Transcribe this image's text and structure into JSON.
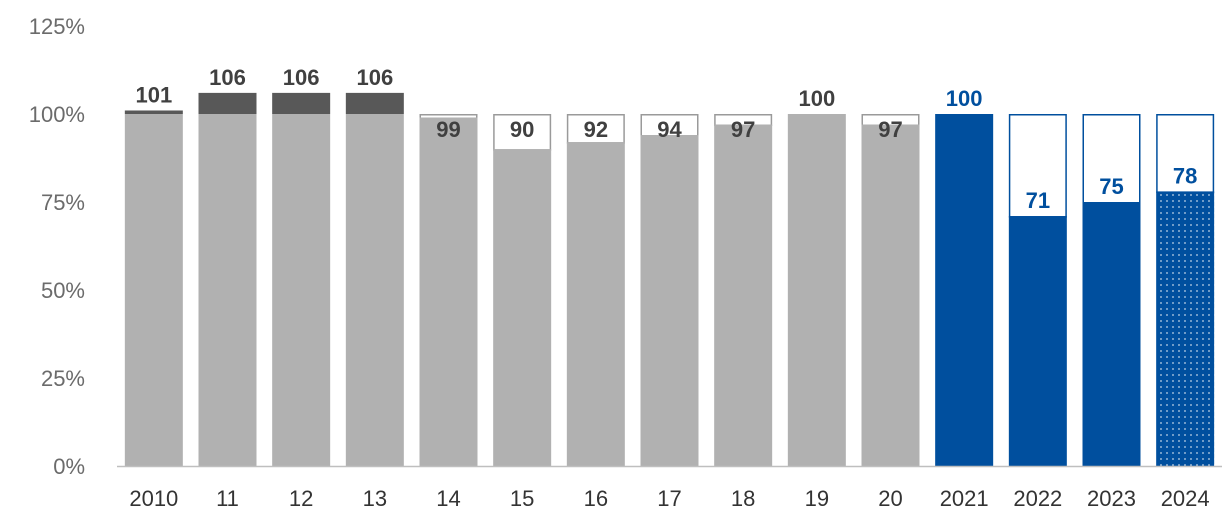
{
  "chart_data": {
    "type": "bar",
    "categories": [
      "2010",
      "11",
      "12",
      "13",
      "14",
      "15",
      "16",
      "17",
      "18",
      "19",
      "20",
      "2021",
      "2022",
      "2023",
      "2024"
    ],
    "values": [
      101,
      106,
      106,
      106,
      99,
      90,
      92,
      94,
      97,
      100,
      97,
      100,
      71,
      75,
      78
    ],
    "ylim": [
      0,
      125
    ],
    "yticks": [
      "0%",
      "25%",
      "50%",
      "75%",
      "100%",
      "125%"
    ],
    "ytick_values": [
      0,
      25,
      50,
      75,
      100,
      125
    ],
    "reference_value": 100,
    "grid": false,
    "legend": "none",
    "bar_styles": [
      "historical",
      "historical",
      "historical",
      "historical",
      "historical",
      "historical",
      "historical",
      "historical",
      "historical",
      "historical",
      "historical",
      "target",
      "target",
      "target",
      "target-projected"
    ],
    "colors": {
      "historical_fill": "#b1b1b1",
      "historical_excess": "#585858",
      "historical_label": "#404040",
      "target_fill": "#004f9e",
      "target_label": "#004f9e",
      "gap_outline_historical": "#9a9a9a",
      "gap_outline_target": "#004f9e",
      "axis": "#bfbfbf"
    }
  }
}
